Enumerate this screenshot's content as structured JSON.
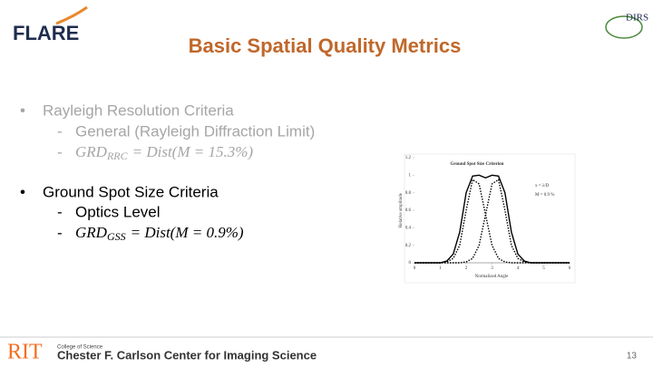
{
  "header": {
    "logo": "FLARE",
    "title": "Basic Spatial Quality Metrics",
    "logo_right": "DIRS"
  },
  "bullets": [
    {
      "text": "Rayleigh Resolution Criteria",
      "sub": [
        "General (Rayleigh Diffraction Limit)"
      ],
      "formula": {
        "main": "GRD",
        "subscript": "RRC",
        "rest": "= Dist(M = 15.3%)"
      }
    },
    {
      "text": "Ground Spot Size Criteria",
      "sub": [
        "Optics Level"
      ],
      "formula": {
        "main": "GRD",
        "subscript": "GSS",
        "rest": "= Dist(M = 0.9%)"
      }
    }
  ],
  "chart_data": {
    "type": "line",
    "title": "Ground Spot Size Criterion",
    "x_label": "Normalized Angle",
    "y_label": "Relative amplitude",
    "annotations": [
      "x = λ/D",
      "M = 0.9 %"
    ],
    "x": [
      0,
      0.5,
      1,
      1.25,
      1.5,
      1.75,
      2,
      2.25,
      2.5,
      2.75,
      3,
      3.25,
      3.5,
      3.75,
      4,
      4.25,
      4.5,
      5,
      6
    ],
    "series": [
      {
        "color": "#000000",
        "style": "solid",
        "values": [
          0,
          0,
          0,
          0.02,
          0.1,
          0.35,
          0.8,
          0.99,
          1.0,
          0.97,
          1.0,
          0.99,
          0.8,
          0.35,
          0.1,
          0.02,
          0,
          0,
          0
        ]
      },
      {
        "color": "#000000",
        "style": "dotted",
        "values": [
          0,
          0,
          0,
          0.01,
          0.05,
          0.2,
          0.6,
          0.95,
          0.9,
          0.55,
          0.2,
          0.05,
          0.01,
          0,
          0,
          0,
          0,
          0,
          0
        ]
      },
      {
        "color": "#000000",
        "style": "dotted",
        "values": [
          0,
          0,
          0,
          0,
          0,
          0,
          0.01,
          0.05,
          0.2,
          0.55,
          0.9,
          0.95,
          0.6,
          0.2,
          0.05,
          0.01,
          0,
          0,
          0
        ]
      }
    ],
    "xlim": [
      0,
      6
    ],
    "ylim": [
      0,
      1.2
    ],
    "xticks": [
      0,
      1,
      2,
      3,
      4,
      5,
      6
    ],
    "yticks": [
      0,
      0.2,
      0.4,
      0.6,
      0.8,
      1,
      1.2
    ],
    "grid": false
  },
  "footer": {
    "logo": "RIT",
    "college": "College of Science",
    "center": "Chester F. Carlson Center for Imaging Science",
    "page_number": "13"
  }
}
